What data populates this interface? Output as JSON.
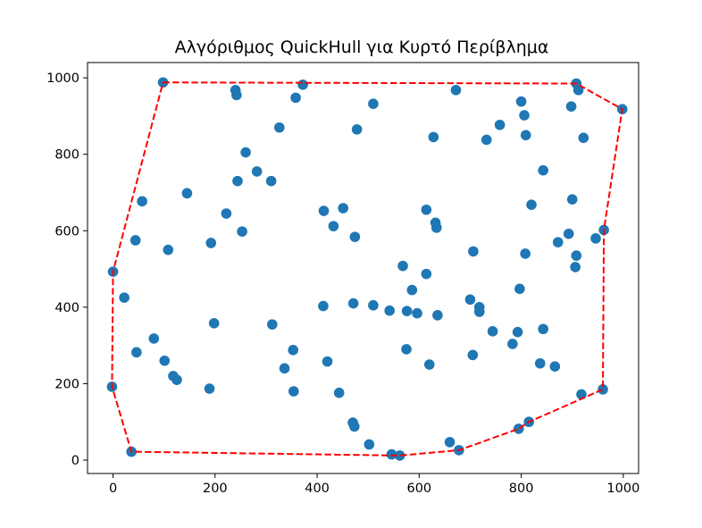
{
  "chart_data": {
    "type": "scatter",
    "title": "Αλγόριθμος QuickHull για Κυρτό Περίβλημα",
    "xlabel": "",
    "ylabel": "",
    "xlim": [
      -50,
      1030
    ],
    "ylim": [
      -35,
      1040
    ],
    "x_ticks": [
      0,
      200,
      400,
      600,
      800,
      1000
    ],
    "y_ticks": [
      0,
      200,
      400,
      600,
      800,
      1000
    ],
    "grid": false,
    "legend": "none",
    "colors": {
      "points": "#1f77b4",
      "hull": "#ff0000"
    },
    "points": [
      [
        98,
        988
      ],
      [
        240,
        968
      ],
      [
        242,
        955
      ],
      [
        372,
        982
      ],
      [
        358,
        948
      ],
      [
        510,
        932
      ],
      [
        672,
        968
      ],
      [
        908,
        985
      ],
      [
        912,
        968
      ],
      [
        998,
        918
      ],
      [
        898,
        925
      ],
      [
        800,
        938
      ],
      [
        806,
        902
      ],
      [
        758,
        877
      ],
      [
        809,
        850
      ],
      [
        732,
        838
      ],
      [
        628,
        845
      ],
      [
        922,
        843
      ],
      [
        478,
        865
      ],
      [
        326,
        870
      ],
      [
        260,
        805
      ],
      [
        282,
        755
      ],
      [
        244,
        730
      ],
      [
        310,
        730
      ],
      [
        145,
        698
      ],
      [
        57,
        677
      ],
      [
        222,
        645
      ],
      [
        253,
        598
      ],
      [
        192,
        568
      ],
      [
        44,
        575
      ],
      [
        108,
        550
      ],
      [
        0,
        493
      ],
      [
        22,
        425
      ],
      [
        198,
        358
      ],
      [
        312,
        355
      ],
      [
        353,
        288
      ],
      [
        80,
        318
      ],
      [
        46,
        282
      ],
      [
        101,
        260
      ],
      [
        118,
        220
      ],
      [
        125,
        210
      ],
      [
        189,
        187
      ],
      [
        336,
        240
      ],
      [
        354,
        180
      ],
      [
        420,
        258
      ],
      [
        443,
        176
      ],
      [
        470,
        98
      ],
      [
        473,
        88
      ],
      [
        502,
        41
      ],
      [
        546,
        15
      ],
      [
        562,
        12
      ],
      [
        660,
        47
      ],
      [
        678,
        26
      ],
      [
        -2,
        192
      ],
      [
        36,
        22
      ],
      [
        413,
        652
      ],
      [
        451,
        659
      ],
      [
        432,
        612
      ],
      [
        474,
        584
      ],
      [
        412,
        403
      ],
      [
        471,
        410
      ],
      [
        510,
        405
      ],
      [
        542,
        391
      ],
      [
        568,
        508
      ],
      [
        576,
        390
      ],
      [
        575,
        290
      ],
      [
        586,
        445
      ],
      [
        596,
        384
      ],
      [
        614,
        655
      ],
      [
        614,
        487
      ],
      [
        632,
        621
      ],
      [
        634,
        608
      ],
      [
        636,
        379
      ],
      [
        620,
        250
      ],
      [
        700,
        420
      ],
      [
        706,
        546
      ],
      [
        718,
        388
      ],
      [
        718,
        400
      ],
      [
        705,
        275
      ],
      [
        744,
        337
      ],
      [
        783,
        304
      ],
      [
        793,
        335
      ],
      [
        797,
        448
      ],
      [
        808,
        540
      ],
      [
        820,
        668
      ],
      [
        843,
        758
      ],
      [
        843,
        343
      ],
      [
        837,
        253
      ],
      [
        866,
        245
      ],
      [
        872,
        570
      ],
      [
        893,
        592
      ],
      [
        900,
        682
      ],
      [
        908,
        535
      ],
      [
        906,
        505
      ],
      [
        946,
        580
      ],
      [
        962,
        602
      ],
      [
        960,
        185
      ],
      [
        918,
        172
      ],
      [
        795,
        82
      ],
      [
        815,
        100
      ]
    ],
    "hull": [
      [
        98,
        988
      ],
      [
        908,
        985
      ],
      [
        998,
        918
      ],
      [
        962,
        602
      ],
      [
        960,
        185
      ],
      [
        815,
        100
      ],
      [
        795,
        82
      ],
      [
        678,
        26
      ],
      [
        562,
        12
      ],
      [
        36,
        22
      ],
      [
        -2,
        192
      ],
      [
        0,
        493
      ],
      [
        98,
        988
      ]
    ]
  }
}
